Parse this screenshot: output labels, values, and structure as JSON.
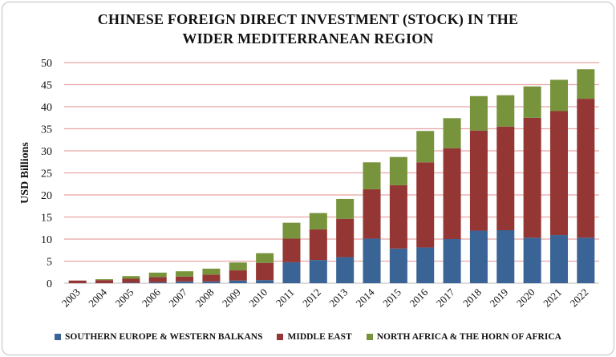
{
  "chart_data": {
    "type": "bar",
    "stacked": true,
    "title": "CHINESE FOREIGN DIRECT INVESTMENT (STOCK) IN THE WIDER MEDITERRANEAN REGION",
    "title_lines": [
      "CHINESE FOREIGN DIRECT INVESTMENT (STOCK) IN THE",
      "WIDER MEDITERRANEAN REGION"
    ],
    "xlabel": "",
    "ylabel": "USD Billions",
    "ylim": [
      0,
      50
    ],
    "yticks": [
      0,
      5,
      10,
      15,
      20,
      25,
      30,
      35,
      40,
      45,
      50
    ],
    "grid": true,
    "legend_position": "bottom",
    "categories": [
      "2003",
      "2004",
      "2005",
      "2006",
      "2007",
      "2008",
      "2009",
      "2010",
      "2011",
      "2012",
      "2013",
      "2014",
      "2015",
      "2016",
      "2017",
      "2018",
      "2019",
      "2020",
      "2021",
      "2022"
    ],
    "series": [
      {
        "name": "SOUTHERN EUROPE & WESTERN BALKANS",
        "color": "#3A6496",
        "values": [
          0,
          0,
          0.1,
          0.2,
          0.4,
          0.4,
          0.6,
          0.7,
          4.75,
          5.25,
          5.9,
          10.1,
          7.85,
          8.1,
          10.0,
          11.9,
          12.0,
          10.3,
          10.9,
          10.3
        ]
      },
      {
        "name": "MIDDLE EAST",
        "color": "#943634",
        "values": [
          0.6,
          0.7,
          0.9,
          1.2,
          1.1,
          1.55,
          2.3,
          3.9,
          5.35,
          6.95,
          8.7,
          11.2,
          14.35,
          19.3,
          20.6,
          22.7,
          23.5,
          27.2,
          28.1,
          31.5
        ]
      },
      {
        "name": "NORTH AFRICA & THE HORN OF AFRICA",
        "color": "#77933C",
        "values": [
          0,
          0.2,
          0.6,
          1.0,
          1.2,
          1.35,
          1.8,
          2.2,
          3.6,
          3.7,
          4.5,
          6.1,
          6.4,
          7.1,
          6.8,
          7.8,
          7.1,
          7.1,
          7.1,
          6.7
        ]
      }
    ],
    "gridline_color": "#E8A4A4"
  }
}
